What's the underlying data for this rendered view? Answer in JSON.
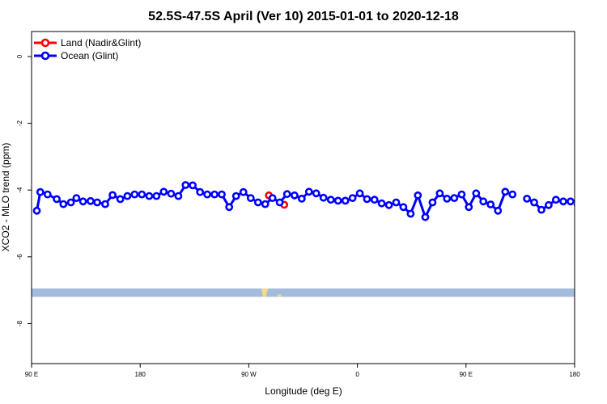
{
  "chart_data": {
    "type": "line",
    "title": "52.5S-47.5S April (Ver 10)   2015-01-01 to 2020-12-18",
    "xlabel": "Longitude (deg E)",
    "ylabel": "XCO2 - MLO trend (ppm)",
    "xlim": [
      90,
      450
    ],
    "ylim": [
      -9.2,
      0.75
    ],
    "x_ticks": [
      {
        "value": 90,
        "label": "90 E"
      },
      {
        "value": 162,
        "label": "180"
      },
      {
        "value": 234,
        "label": "90 W"
      },
      {
        "value": 306,
        "label": "0"
      },
      {
        "value": 378,
        "label": "90 E"
      },
      {
        "value": 450,
        "label": "180"
      }
    ],
    "y_ticks": [
      {
        "value": 0,
        "label": "0"
      },
      {
        "value": -2,
        "label": "-2"
      },
      {
        "value": -4,
        "label": "-4"
      },
      {
        "value": -6,
        "label": "-6"
      },
      {
        "value": -8,
        "label": "-8"
      }
    ],
    "legend_position": "top-left",
    "series": [
      {
        "name": "Land (Nadir&Glint)",
        "color": "#ff0000",
        "segments": [
          [
            [
              247.3,
              -4.16
            ]
          ],
          [
            [
              257.5,
              -4.44
            ]
          ]
        ]
      },
      {
        "name": "Ocean (Glint)",
        "color": "#0000ff",
        "segments": [
          [
            [
              93.5,
              -4.62
            ],
            [
              95.8,
              -4.06
            ],
            [
              100.6,
              -4.13
            ],
            [
              106.7,
              -4.27
            ],
            [
              111.1,
              -4.42
            ],
            [
              116.1,
              -4.37
            ],
            [
              119.7,
              -4.24
            ],
            [
              124.1,
              -4.34
            ],
            [
              129.1,
              -4.33
            ],
            [
              133.5,
              -4.37
            ],
            [
              138.8,
              -4.42
            ],
            [
              143.7,
              -4.15
            ],
            [
              148.8,
              -4.27
            ],
            [
              153.5,
              -4.18
            ],
            [
              158.3,
              -4.13
            ],
            [
              163.1,
              -4.13
            ],
            [
              168.0,
              -4.18
            ],
            [
              172.8,
              -4.18
            ],
            [
              177.6,
              -4.05
            ],
            [
              182.5,
              -4.11
            ],
            [
              187.3,
              -4.18
            ],
            [
              192.1,
              -3.85
            ],
            [
              196.8,
              -3.86
            ],
            [
              201.7,
              -4.06
            ],
            [
              206.5,
              -4.13
            ],
            [
              211.3,
              -4.13
            ],
            [
              216.1,
              -4.13
            ],
            [
              221.0,
              -4.51
            ],
            [
              225.6,
              -4.18
            ],
            [
              230.4,
              -4.06
            ],
            [
              235.3,
              -4.24
            ],
            [
              240.1,
              -4.37
            ],
            [
              244.9,
              -4.42
            ],
            [
              249.7,
              -4.24
            ],
            [
              254.5,
              -4.37
            ],
            [
              259.4,
              -4.12
            ],
            [
              264.3,
              -4.16
            ],
            [
              269.1,
              -4.26
            ],
            [
              273.9,
              -4.05
            ],
            [
              278.7,
              -4.1
            ],
            [
              283.5,
              -4.23
            ],
            [
              288.4,
              -4.29
            ],
            [
              293.2,
              -4.32
            ],
            [
              298.0,
              -4.32
            ]
          ],
          [
            [
              302.8,
              -4.24
            ],
            [
              307.6,
              -4.1
            ],
            [
              312.4,
              -4.27
            ],
            [
              317.3,
              -4.29
            ],
            [
              322.1,
              -4.4
            ],
            [
              326.9,
              -4.45
            ],
            [
              331.7,
              -4.37
            ],
            [
              336.5,
              -4.51
            ],
            [
              341.3,
              -4.71
            ],
            [
              346.1,
              -4.16
            ],
            [
              351.0,
              -4.81
            ],
            [
              355.8,
              -4.37
            ],
            [
              360.6,
              -4.1
            ],
            [
              365.4,
              -4.26
            ],
            [
              370.2,
              -4.24
            ],
            [
              375.1,
              -4.13
            ],
            [
              379.9,
              -4.51
            ],
            [
              384.7,
              -4.1
            ],
            [
              389.5,
              -4.34
            ],
            [
              394.3,
              -4.43
            ],
            [
              399.2,
              -4.62
            ],
            [
              404.0,
              -4.05
            ],
            [
              408.8,
              -4.13
            ]
          ],
          [
            [
              418.4,
              -4.26
            ],
            [
              423.2,
              -4.37
            ],
            [
              428.0,
              -4.59
            ],
            [
              432.8,
              -4.45
            ],
            [
              437.6,
              -4.29
            ],
            [
              442.5,
              -4.34
            ],
            [
              447.3,
              -4.34
            ]
          ],
          [
            [
              452.1,
              -4.45
            ],
            [
              456.9,
              -4.24
            ],
            [
              461.8,
              -4.05
            ],
            [
              466.6,
              -4.29
            ],
            [
              471.4,
              -4.16
            ],
            [
              476.2,
              -4.13
            ]
          ]
        ]
      }
    ],
    "map_strip": {
      "y_top": -6.95,
      "y_bottom": -7.2,
      "ocean_color": "#a4bcdc",
      "land_color": "#f5d889"
    }
  }
}
